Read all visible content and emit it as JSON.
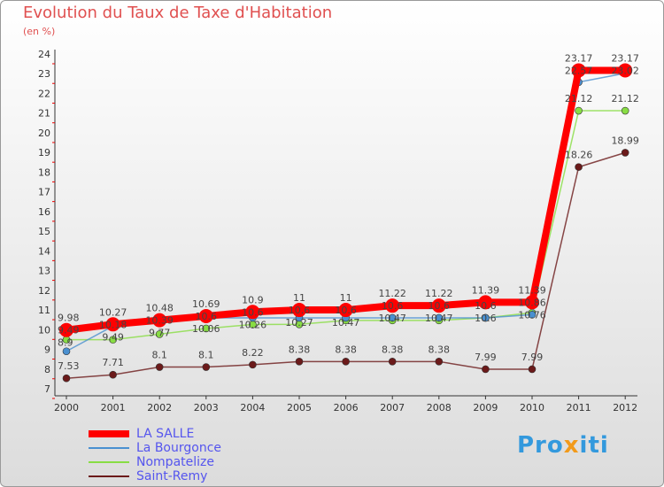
{
  "title": "Evolution du Taux de Taxe d'Habitation",
  "subtitle": "(en %)",
  "logo": "Proxiti",
  "chart_data": {
    "type": "line",
    "title": "Evolution du Taux de Taxe d'Habitation",
    "ylabel": "(en %)",
    "x": [
      "2000",
      "2001",
      "2002",
      "2003",
      "2004",
      "2005",
      "2006",
      "2007",
      "2008",
      "2009",
      "2010",
      "2011",
      "2012"
    ],
    "ylim": [
      7,
      24
    ],
    "yticks": [
      7,
      8,
      9,
      10,
      11,
      12,
      13,
      14,
      15,
      16,
      17,
      18,
      19,
      20,
      21,
      22,
      23,
      24
    ],
    "legend": "bottom-left",
    "series": [
      {
        "name": "LA SALLE",
        "color": "#ff0000",
        "values": [
          9.98,
          10.27,
          10.48,
          10.69,
          10.9,
          11,
          11,
          11.22,
          11.22,
          11.39,
          11.39,
          23.17,
          23.17
        ],
        "labels": [
          "9.98",
          "10.27",
          "10.48",
          "10.69",
          "10.9",
          "11",
          "11",
          "11.22",
          "11.22",
          "11.39",
          "11.39",
          "23.17",
          "23.17"
        ]
      },
      {
        "name": "La Bourgonce",
        "color": "#4a90d0",
        "values": [
          8.9,
          10.18,
          10.39,
          10.6,
          10.6,
          10.6,
          10.6,
          10.6,
          10.6,
          10.6,
          10.76,
          22.57,
          23.02
        ],
        "labels": [
          "8.9",
          "10.18",
          "10.39",
          "10.6",
          "10.6",
          "10.6",
          "10.6",
          "10.6",
          "10.6",
          "10.6",
          "10.76",
          "22.57",
          "23.02"
        ]
      },
      {
        "name": "Nompatelize",
        "color": "#88dd44",
        "values": [
          9.49,
          9.49,
          9.77,
          10.06,
          10.26,
          10.27,
          10.47,
          10.47,
          10.47,
          10.6,
          10.86,
          21.12,
          21.12
        ],
        "labels": [
          "9.49",
          "9.49",
          "9.77",
          "10.06",
          "10.26",
          "10.27",
          "10.47",
          "10.47",
          "10.47",
          "10.6",
          "10.86",
          "21.12",
          "21.12"
        ]
      },
      {
        "name": "Saint-Remy",
        "color": "#6b1a1a",
        "values": [
          7.53,
          7.71,
          8.1,
          8.1,
          8.22,
          8.38,
          8.38,
          8.38,
          8.38,
          7.99,
          7.99,
          18.26,
          18.99
        ],
        "labels": [
          "7.53",
          "7.71",
          "8.1",
          "8.1",
          "8.22",
          "8.38",
          "8.38",
          "8.38",
          "8.38",
          "7.99",
          "7.99",
          "18.26",
          "18.99"
        ]
      }
    ]
  }
}
